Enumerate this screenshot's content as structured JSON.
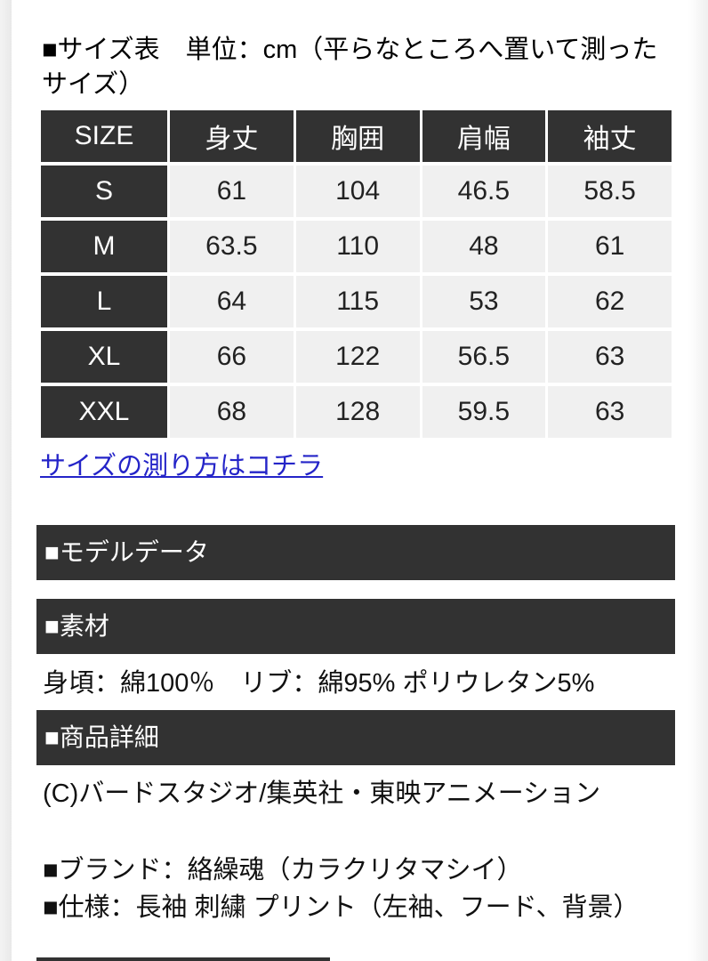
{
  "header": {
    "size_table_title": "■サイズ表　単位：cm（平らなところへ置いて測ったサイズ）"
  },
  "size_table": {
    "columns": [
      "SIZE",
      "身丈",
      "胸囲",
      "肩幅",
      "袖丈"
    ],
    "rows": [
      {
        "size": "S",
        "values": [
          "61",
          "104",
          "46.5",
          "58.5"
        ]
      },
      {
        "size": "M",
        "values": [
          "63.5",
          "110",
          "48",
          "61"
        ]
      },
      {
        "size": "L",
        "values": [
          "64",
          "115",
          "53",
          "62"
        ]
      },
      {
        "size": "XL",
        "values": [
          "66",
          "122",
          "56.5",
          "63"
        ]
      },
      {
        "size": "XXL",
        "values": [
          "68",
          "128",
          "59.5",
          "63"
        ]
      }
    ],
    "measure_link_label": "サイズの測り方はコチラ"
  },
  "sections": {
    "model_data": {
      "title": "■モデルデータ"
    },
    "material": {
      "title": "■素材",
      "composition": "身頃：綿100％　リブ：綿95% ポリウレタン5%"
    },
    "product_detail": {
      "title": "■商品詳細",
      "copyright": "(C)バードスタジオ/集英社・東映アニメーション",
      "brand": "■ブランド：絡繰魂（カラクリタマシイ）",
      "spec": "■仕様：長袖 刺繍 プリント（左袖、フード、背景）"
    }
  },
  "colors": {
    "bar_dark": "#323232",
    "cell_light": "#f0f0f0",
    "link_blue": "#2424c8"
  }
}
